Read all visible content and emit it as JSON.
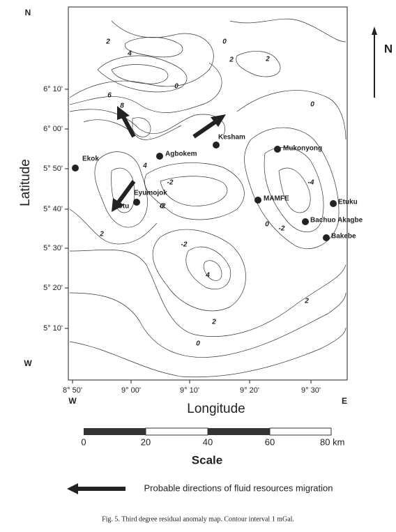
{
  "map": {
    "corner_labels": {
      "top_left": "N",
      "left": "W",
      "bottom_left": "W",
      "bottom_right": "E"
    },
    "north_arrow": "N",
    "y_ticks": [
      "6° 10'",
      "6° 00'",
      "5° 50'",
      "5° 40'",
      "5° 30'",
      "5° 20'",
      "5° 10'"
    ],
    "x_ticks": [
      "8° 50'",
      "9° 00'",
      "9° 10'",
      "9° 20'",
      "9° 30'"
    ],
    "y_label": "Latitude",
    "x_label": "Longitude",
    "towns": [
      "Ekok",
      "Agbokem",
      "Kesham",
      "Mukonyong",
      "Eyumojok",
      "Otu",
      "MAMFE",
      "Etuku",
      "Bachuo Akagbe",
      "Bakebe"
    ],
    "contour_labels": [
      "2",
      "4",
      "0",
      "2",
      "2",
      "0",
      "6",
      "8",
      "0",
      "-2",
      "4",
      "-2",
      "4",
      "-4",
      "0",
      "-2",
      "2",
      "2",
      "2",
      "0",
      "-2",
      "0"
    ]
  },
  "scale": {
    "ticks": [
      "0",
      "20",
      "40",
      "60",
      "80 km"
    ],
    "title": "Scale"
  },
  "legend": "Probable directions of fluid resources migration",
  "caption": "Fig. 5. Third degree residual anomaly map. Contour interval 1 mGal."
}
